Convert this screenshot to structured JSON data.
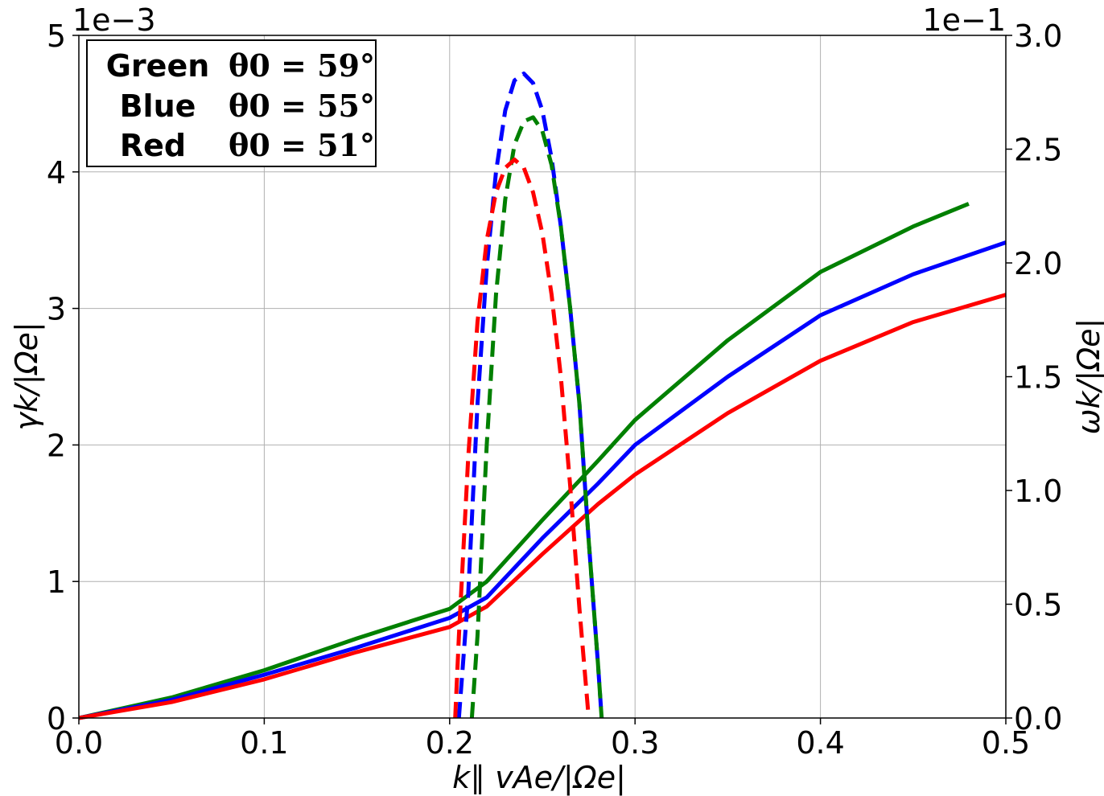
{
  "chart_data": {
    "type": "line",
    "x_label": "k∥ vAe/|Ωe|",
    "y_left_label": "γk/|Ωe|",
    "y_right_label": "ωk/|Ωe|",
    "y_left_multiplier": "1e−3",
    "y_right_multiplier": "1e−1",
    "x_range": [
      0.0,
      0.5
    ],
    "y_left_range": [
      0,
      5
    ],
    "y_right_range": [
      0.0,
      3.0
    ],
    "x_ticks": [
      "0.0",
      "0.1",
      "0.2",
      "0.3",
      "0.4",
      "0.5"
    ],
    "y_left_ticks": [
      "0",
      "1",
      "2",
      "3",
      "4",
      "5"
    ],
    "y_right_ticks": [
      "0.0",
      "0.5",
      "1.0",
      "1.5",
      "2.0",
      "2.5",
      "3.0"
    ],
    "grid": true,
    "legend_position": "top-left",
    "legend": [
      {
        "name": "Green",
        "formula": "θ0 = 59°",
        "color": "#008000"
      },
      {
        "name": "Blue",
        "formula": "θ0 = 55°",
        "color": "#0000ff"
      },
      {
        "name": "Red",
        "formula": "θ0 = 51°",
        "color": "#ff0000"
      }
    ],
    "series": [
      {
        "name": "Green",
        "color": "#008000",
        "style": "solid",
        "axis": "right",
        "x": [
          0.0,
          0.05,
          0.1,
          0.15,
          0.2,
          0.22,
          0.25,
          0.28,
          0.3,
          0.35,
          0.4,
          0.45,
          0.48
        ],
        "y": [
          0.0,
          0.09,
          0.21,
          0.35,
          0.48,
          0.6,
          0.87,
          1.13,
          1.31,
          1.66,
          1.96,
          2.16,
          2.26
        ]
      },
      {
        "name": "Blue",
        "color": "#0000ff",
        "style": "solid",
        "axis": "right",
        "x": [
          0.0,
          0.05,
          0.1,
          0.15,
          0.2,
          0.22,
          0.25,
          0.28,
          0.3,
          0.35,
          0.4,
          0.45,
          0.5
        ],
        "y": [
          0.0,
          0.08,
          0.19,
          0.31,
          0.44,
          0.53,
          0.79,
          1.03,
          1.2,
          1.5,
          1.77,
          1.95,
          2.09
        ]
      },
      {
        "name": "Red",
        "color": "#ff0000",
        "style": "solid",
        "axis": "right",
        "x": [
          0.0,
          0.05,
          0.1,
          0.15,
          0.2,
          0.22,
          0.25,
          0.28,
          0.3,
          0.35,
          0.4,
          0.45,
          0.5
        ],
        "y": [
          0.0,
          0.07,
          0.17,
          0.29,
          0.4,
          0.49,
          0.72,
          0.94,
          1.07,
          1.34,
          1.57,
          1.74,
          1.86
        ]
      },
      {
        "name": "Blue",
        "color": "#0000ff",
        "style": "dashed",
        "axis": "left",
        "x": [
          0.205,
          0.21,
          0.215,
          0.22,
          0.225,
          0.23,
          0.235,
          0.24,
          0.245,
          0.25,
          0.255,
          0.26,
          0.265,
          0.27,
          0.275,
          0.28,
          0.282
        ],
        "y": [
          0.0,
          0.9,
          2.3,
          3.3,
          4.0,
          4.45,
          4.67,
          4.72,
          4.65,
          4.45,
          4.1,
          3.6,
          3.0,
          2.3,
          1.3,
          0.4,
          0.0
        ]
      },
      {
        "name": "Green",
        "color": "#008000",
        "style": "dashed",
        "axis": "left",
        "x": [
          0.212,
          0.215,
          0.22,
          0.225,
          0.23,
          0.235,
          0.24,
          0.245,
          0.25,
          0.255,
          0.26,
          0.265,
          0.27,
          0.275,
          0.28,
          0.282
        ],
        "y": [
          0.0,
          0.6,
          2.0,
          3.1,
          3.8,
          4.2,
          4.37,
          4.4,
          4.3,
          4.05,
          3.6,
          3.0,
          2.3,
          1.3,
          0.4,
          0.0
        ]
      },
      {
        "name": "Red",
        "color": "#ff0000",
        "style": "dashed",
        "axis": "left",
        "x": [
          0.203,
          0.205,
          0.21,
          0.215,
          0.22,
          0.225,
          0.23,
          0.235,
          0.24,
          0.245,
          0.25,
          0.255,
          0.26,
          0.265,
          0.27,
          0.275
        ],
        "y": [
          0.0,
          0.6,
          1.9,
          2.9,
          3.5,
          3.85,
          4.03,
          4.09,
          4.03,
          3.85,
          3.55,
          3.1,
          2.5,
          1.7,
          0.8,
          0.0
        ]
      }
    ]
  }
}
